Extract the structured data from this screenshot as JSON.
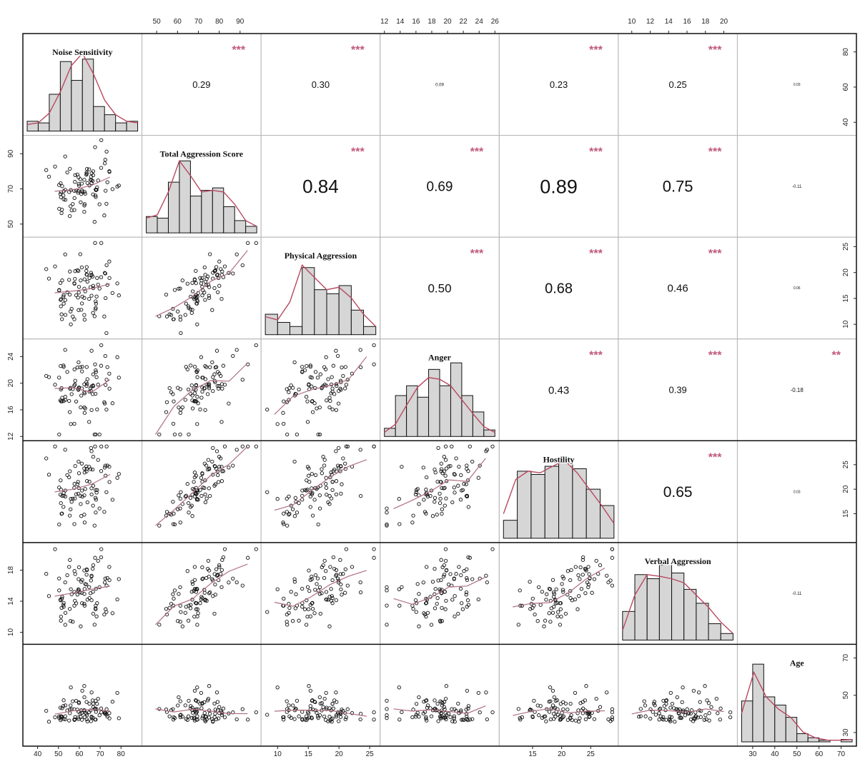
{
  "chart_data": {
    "type": "scatter-matrix",
    "title": "",
    "variables": [
      {
        "name": "Noise Sensitivity",
        "range": [
          35,
          88
        ],
        "ticks": [
          "40",
          "50",
          "60",
          "70",
          "80"
        ],
        "hist": [
          0.12,
          0.1,
          0.45,
          0.85,
          0.62,
          0.88,
          0.3,
          0.2,
          0.1,
          0.12
        ],
        "density": [
          0.08,
          0.1,
          0.22,
          0.48,
          0.8,
          0.95,
          0.7,
          0.38,
          0.2,
          0.12,
          0.1
        ]
      },
      {
        "name": "Total Aggression Score",
        "range": [
          45,
          98
        ],
        "ticks": [
          "50",
          "60",
          "70",
          "80",
          "90"
        ],
        "hist": [
          0.2,
          0.18,
          0.62,
          0.88,
          0.45,
          0.52,
          0.55,
          0.32,
          0.15,
          0.08
        ],
        "density": [
          0.18,
          0.22,
          0.5,
          0.88,
          0.7,
          0.5,
          0.52,
          0.5,
          0.35,
          0.15,
          0.08
        ]
      },
      {
        "name": "Physical Aggression",
        "range": [
          8,
          26
        ],
        "ticks": [
          "10",
          "15",
          "20",
          "25"
        ],
        "hist": [
          0.25,
          0.15,
          0.1,
          0.82,
          0.55,
          0.5,
          0.6,
          0.3,
          0.1
        ],
        "density": [
          0.22,
          0.18,
          0.4,
          0.85,
          0.7,
          0.55,
          0.58,
          0.45,
          0.25,
          0.1
        ]
      },
      {
        "name": "Anger",
        "range": [
          12,
          26
        ],
        "ticks": [
          "12",
          "14",
          "16",
          "18",
          "20",
          "22",
          "24",
          "26"
        ],
        "hist": [
          0.1,
          0.5,
          0.62,
          0.48,
          0.82,
          0.62,
          0.9,
          0.5,
          0.3,
          0.08
        ],
        "density": [
          0.05,
          0.15,
          0.38,
          0.6,
          0.72,
          0.7,
          0.62,
          0.45,
          0.28,
          0.12,
          0.05
        ]
      },
      {
        "name": "Hostility",
        "range": [
          10,
          29
        ],
        "ticks": [
          "15",
          "20",
          "25"
        ],
        "hist": [
          0.22,
          0.82,
          0.78,
          0.88,
          0.92,
          0.85,
          0.6,
          0.4
        ],
        "density": [
          0.3,
          0.72,
          0.82,
          0.8,
          0.88,
          0.95,
          0.8,
          0.6,
          0.4,
          0.18
        ]
      },
      {
        "name": "Verbal Aggression",
        "range": [
          9,
          21
        ],
        "ticks": [
          "10",
          "12",
          "14",
          "16",
          "18",
          "20"
        ],
        "hist": [
          0.35,
          0.8,
          0.75,
          0.92,
          0.82,
          0.62,
          0.45,
          0.2,
          0.08
        ],
        "density": [
          0.12,
          0.55,
          0.8,
          0.78,
          0.75,
          0.7,
          0.55,
          0.4,
          0.22,
          0.08
        ]
      },
      {
        "name": "Age",
        "range": [
          25,
          75
        ],
        "ticks": [
          "30",
          "40",
          "50",
          "60",
          "70"
        ],
        "hist": [
          0.5,
          0.95,
          0.55,
          0.45,
          0.3,
          0.1,
          0.05,
          0.02,
          0.0,
          0.03
        ],
        "density": [
          0.35,
          0.85,
          0.55,
          0.4,
          0.3,
          0.12,
          0.05,
          0.02,
          0.02,
          0.03
        ]
      }
    ],
    "bottom_axis_labels": {
      "0": [
        "40",
        "50",
        "60",
        "70",
        "80"
      ],
      "2": [
        "10",
        "15",
        "20",
        "25"
      ],
      "4": [
        "15",
        "20",
        "25"
      ],
      "6": [
        "30",
        "40",
        "50",
        "60",
        "70"
      ]
    },
    "top_axis_labels": {
      "1": [
        "50",
        "60",
        "70",
        "80",
        "90"
      ],
      "3": [
        "12",
        "14",
        "16",
        "18",
        "20",
        "22",
        "24",
        "26"
      ],
      "5": [
        "10",
        "12",
        "14",
        "16",
        "18",
        "20"
      ]
    },
    "left_axis_labels": {
      "1": [
        "50",
        "70",
        "90"
      ],
      "3": [
        "12",
        "16",
        "20",
        "24"
      ],
      "5": [
        "10",
        "14",
        "18"
      ]
    },
    "right_axis_labels": {
      "0": [
        "40",
        "60",
        "80"
      ],
      "2": [
        "10",
        "15",
        "20",
        "25"
      ],
      "4": [
        "15",
        "20",
        "25"
      ],
      "6": [
        "30",
        "50",
        "70"
      ]
    },
    "correlations": [
      {
        "row": 0,
        "col": 1,
        "value": "0.29",
        "stars": "***",
        "size": 13
      },
      {
        "row": 0,
        "col": 2,
        "value": "0.30",
        "stars": "***",
        "size": 13
      },
      {
        "row": 0,
        "col": 3,
        "value": "0.09",
        "stars": "",
        "size": 6
      },
      {
        "row": 0,
        "col": 4,
        "value": "0.23",
        "stars": "***",
        "size": 13
      },
      {
        "row": 0,
        "col": 5,
        "value": "0.25",
        "stars": "***",
        "size": 13
      },
      {
        "row": 0,
        "col": 6,
        "value": "0.03",
        "stars": "",
        "size": 5
      },
      {
        "row": 1,
        "col": 2,
        "value": "0.84",
        "stars": "***",
        "size": 26
      },
      {
        "row": 1,
        "col": 3,
        "value": "0.69",
        "stars": "***",
        "size": 19
      },
      {
        "row": 1,
        "col": 4,
        "value": "0.89",
        "stars": "***",
        "size": 27
      },
      {
        "row": 1,
        "col": 5,
        "value": "0.75",
        "stars": "***",
        "size": 22
      },
      {
        "row": 1,
        "col": 6,
        "value": "-0.11",
        "stars": "",
        "size": 6
      },
      {
        "row": 2,
        "col": 3,
        "value": "0.50",
        "stars": "***",
        "size": 17
      },
      {
        "row": 2,
        "col": 4,
        "value": "0.68",
        "stars": "***",
        "size": 20
      },
      {
        "row": 2,
        "col": 5,
        "value": "0.46",
        "stars": "***",
        "size": 15
      },
      {
        "row": 2,
        "col": 6,
        "value": "0.06",
        "stars": "",
        "size": 5
      },
      {
        "row": 3,
        "col": 4,
        "value": "0.43",
        "stars": "***",
        "size": 15
      },
      {
        "row": 3,
        "col": 5,
        "value": "0.39",
        "stars": "***",
        "size": 13
      },
      {
        "row": 3,
        "col": 6,
        "value": "-0.18",
        "stars": "**",
        "size": 8
      },
      {
        "row": 4,
        "col": 5,
        "value": "0.65",
        "stars": "***",
        "size": 21
      },
      {
        "row": 4,
        "col": 6,
        "value": "0.03",
        "stars": "",
        "size": 5
      },
      {
        "row": 5,
        "col": 6,
        "value": "-0.11",
        "stars": "",
        "size": 6
      }
    ],
    "colors": {
      "bar_fill": "#d6d6d6",
      "bar_stroke": "#111111",
      "density_line": "#b8485f",
      "smooth_line": "#b07080",
      "stars": "#c0587e",
      "grid_line": "#b8b8b8"
    },
    "grid": false,
    "legend": "none"
  }
}
